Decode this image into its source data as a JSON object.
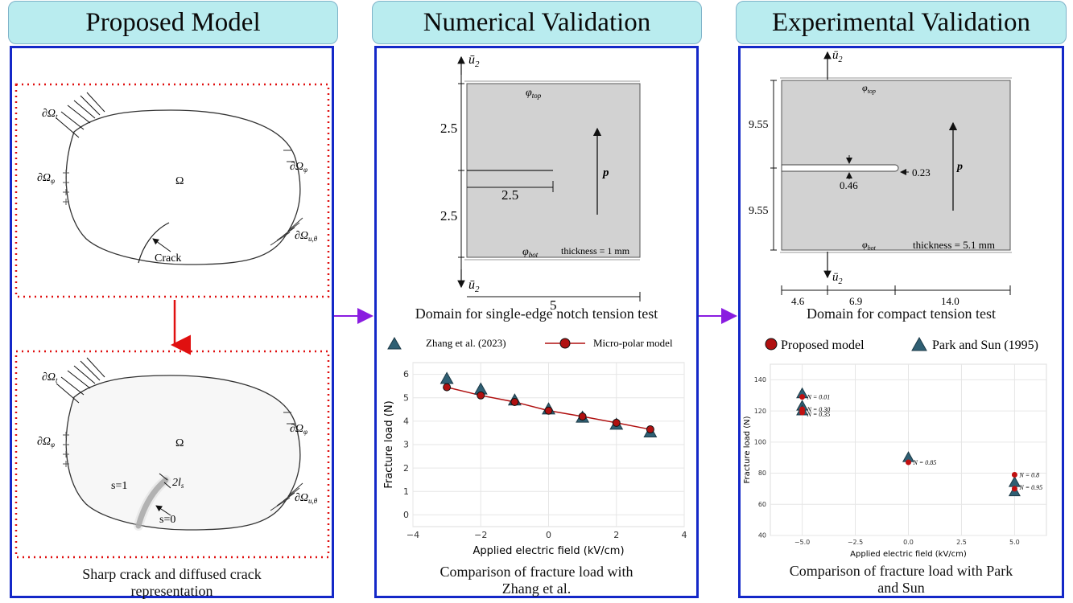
{
  "headers": {
    "proposed": "Proposed Model",
    "numerical": "Numerical Validation",
    "experimental": "Experimental Validation"
  },
  "panel1": {
    "omega": "Ω",
    "d_omega_t": "∂Ω",
    "d_omega_t_sub": "t",
    "d_omega_phi": "∂Ω",
    "d_omega_phi_sub": "φ",
    "d_omega_u": "∂Ω",
    "d_omega_u_sub": "u,θ",
    "crack": "Crack",
    "s1": "s=1",
    "s0": "s=0",
    "width_label": "2l",
    "width_sub": "s",
    "caption_line1": "Sharp crack and diffused crack",
    "caption_line2": "representation"
  },
  "panel2": {
    "u_top": "ū",
    "u_sub": "2",
    "phi_top": "φ",
    "phi_top_sub": "top",
    "phi_bot": "φ",
    "phi_bot_sub": "bot",
    "dim_top": "2.5",
    "dim_bot": "2.5",
    "notch_len": "2.5",
    "width": "5",
    "p": "p",
    "thickness": "thickness = 1 mm",
    "domain_caption": "Domain for single-edge notch tension test",
    "legend_a": "Zhang et al. (2023)",
    "legend_b": "Micro-polar model",
    "chart_caption_line1": "Comparison of fracture load with",
    "chart_caption_line2": "Zhang et al."
  },
  "panel3": {
    "u_top": "ū",
    "u_sub": "2",
    "phi_top": "φ",
    "phi_top_sub": "top",
    "phi_bot": "φ",
    "phi_bot_sub": "bot",
    "dim_top": "9.55",
    "dim_bot": "9.55",
    "gap": "0.46",
    "tip": "0.23",
    "p": "p",
    "thickness": "thickness = 5.1 mm",
    "w1": "4.6",
    "w2": "6.9",
    "w3": "14.0",
    "domain_caption": "Domain for compact tension test",
    "legend_a": "Proposed model",
    "legend_b": "Park and Sun (1995)",
    "chart_caption_line1": "Comparison of fracture load with Park",
    "chart_caption_line2": "and Sun"
  },
  "colors": {
    "header_bg": "#b9ecef",
    "panel_border": "#1428c8",
    "red_dots": "#e01010",
    "flow_arrow": "#8a1ce0",
    "triangle": "#2f5f73",
    "circle": "#b01010"
  },
  "chart_data": [
    {
      "type": "scatter",
      "xlabel": "Applied electric field (kV/cm)",
      "ylabel": "Fracture load (N)",
      "xlim": [
        -4,
        4
      ],
      "ylim": [
        -0.5,
        6.5
      ],
      "xticks": [
        -4,
        -2,
        0,
        2,
        4
      ],
      "yticks": [
        0,
        1,
        2,
        3,
        4,
        5,
        6
      ],
      "grid": true,
      "legend": "top",
      "series": [
        {
          "name": "Zhang et al. (2023)",
          "marker": "triangle",
          "x": [
            -3,
            -2,
            -1,
            0,
            1,
            2,
            3
          ],
          "y": [
            5.8,
            5.35,
            4.88,
            4.5,
            4.15,
            3.85,
            3.52
          ]
        },
        {
          "name": "Micro-polar model",
          "marker": "circle-line",
          "x": [
            -3,
            -2,
            -1,
            0,
            1,
            2,
            3
          ],
          "y": [
            5.45,
            5.1,
            4.82,
            4.45,
            4.2,
            3.93,
            3.65
          ]
        }
      ]
    },
    {
      "type": "scatter",
      "xlabel": "Applied electric field (kV/cm)",
      "ylabel": "Fracture load (N)",
      "xlim": [
        -6.5,
        6.5
      ],
      "ylim": [
        40,
        150
      ],
      "xticks": [
        -5.0,
        -2.5,
        0.0,
        2.5,
        5.0
      ],
      "yticks": [
        40,
        60,
        80,
        100,
        120,
        140
      ],
      "grid": true,
      "legend": "top",
      "series": [
        {
          "name": "Proposed model",
          "marker": "circle",
          "x": [
            -5,
            -5,
            -5,
            0,
            5,
            5
          ],
          "y": [
            129,
            121,
            119,
            87,
            79,
            70
          ]
        },
        {
          "name": "Park and Sun (1995)",
          "marker": "triangle",
          "x": [
            -5,
            -5,
            -5,
            0,
            5,
            5
          ],
          "y": [
            131,
            123,
            120,
            90,
            74,
            68
          ]
        }
      ],
      "annotations": [
        {
          "x": -5,
          "y": 129,
          "text": "N = 0.01"
        },
        {
          "x": -5,
          "y": 121,
          "text": "N = 0.30"
        },
        {
          "x": -5,
          "y": 118,
          "text": "N = 0.35"
        },
        {
          "x": 0,
          "y": 87,
          "text": "N = 0.85"
        },
        {
          "x": 5,
          "y": 79,
          "text": "N = 0.8"
        },
        {
          "x": 5,
          "y": 71,
          "text": "N = 0.95"
        }
      ]
    }
  ]
}
